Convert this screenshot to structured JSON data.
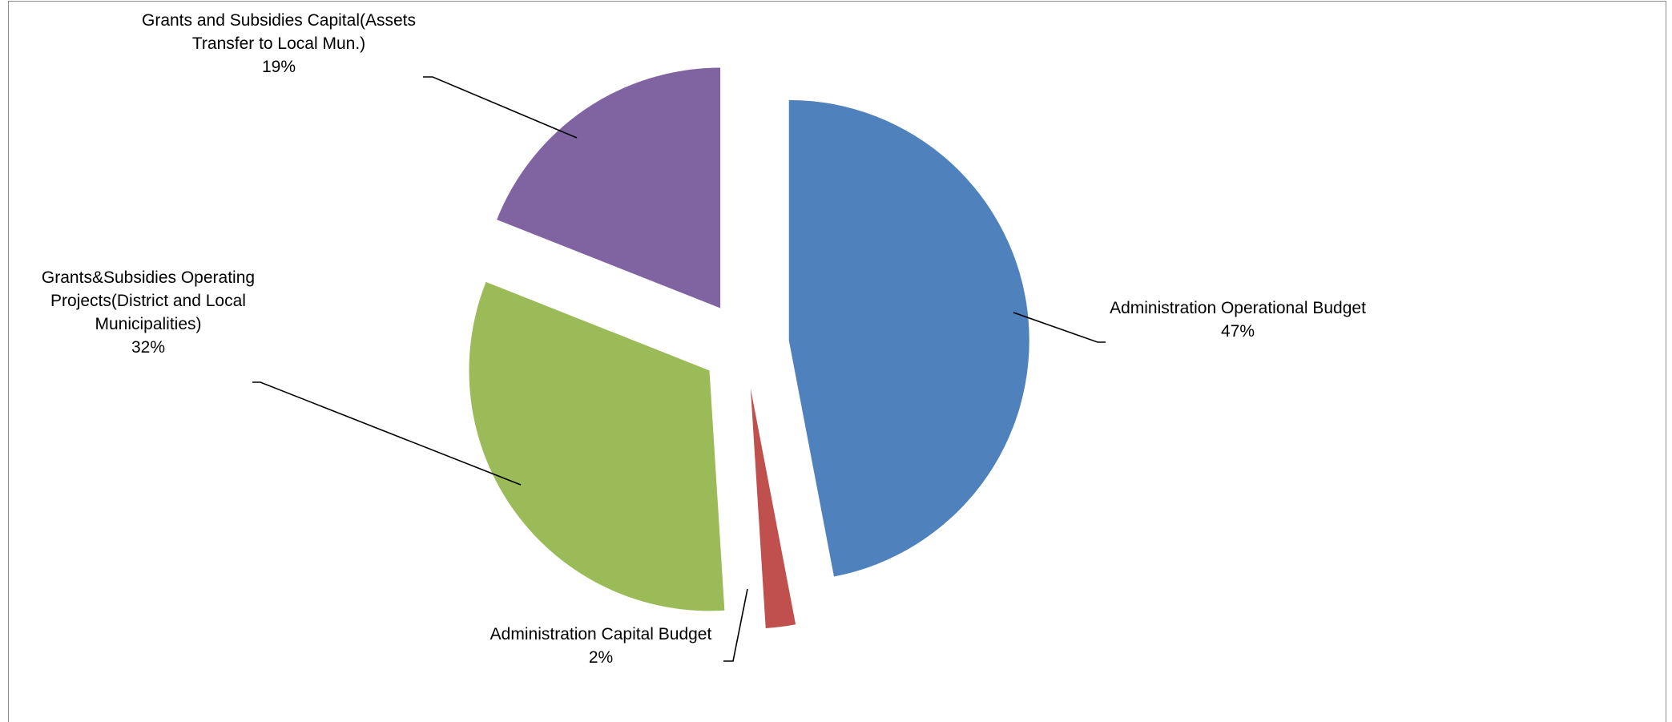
{
  "chart_data": {
    "type": "pie",
    "start_angle_deg": 0,
    "direction": "clockwise",
    "slices": [
      {
        "category": "Administration Operational Budget",
        "percent_label": "47%",
        "value": 47,
        "color": "#4f81bd",
        "label_lines": [
          "Administration Operational Budget"
        ]
      },
      {
        "category": "Administration Capital Budget",
        "percent_label": "2%",
        "value": 2,
        "color": "#c0504d",
        "label_lines": [
          "Administration Capital Budget"
        ]
      },
      {
        "category": "Grants&Subsidies Operating Projects(District and Local Municipalities)",
        "percent_label": "32%",
        "value": 32,
        "color": "#9bbb59",
        "label_lines": [
          "Grants&Subsidies Operating",
          "Projects(District and Local",
          "Municipalities)"
        ]
      },
      {
        "category": "Grants and Subsidies Capital(Assets Transfer to Local Mun.)",
        "percent_label": "19%",
        "value": 19,
        "color": "#8064a2",
        "label_lines": [
          "Grants and Subsidies Capital(Assets",
          "Transfer to Local Mun.)"
        ]
      }
    ]
  }
}
